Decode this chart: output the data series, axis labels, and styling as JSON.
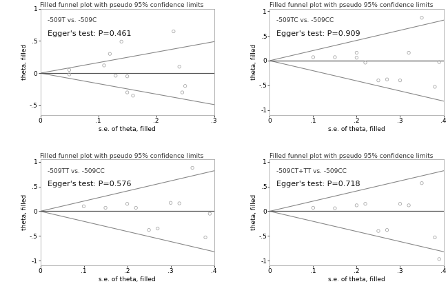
{
  "plots": [
    {
      "title": "Filled funnel plot with pseudo 95% confidence limits",
      "label": "-509T vs. -509C",
      "egger": "Egger's test: P=0.461",
      "xlabel": "s.e. of theta, filled",
      "ylabel": "theta, filled",
      "xlim": [
        0,
        3.0
      ],
      "ylim": [
        -0.65,
        1.0
      ],
      "xticks": [
        0,
        1.0,
        2.0,
        3.0
      ],
      "yticks": [
        -0.5,
        0,
        0.5,
        1.0
      ],
      "ytick_labels": [
        "-.5",
        "0",
        ".5",
        "1"
      ],
      "xtick_labels": [
        "0",
        ".1",
        ".2",
        ".3"
      ],
      "points_x": [
        0.5,
        0.5,
        1.1,
        1.2,
        1.3,
        1.4,
        1.5,
        1.5,
        1.6,
        2.3,
        2.4,
        2.5,
        2.45
      ],
      "points_y": [
        0.05,
        -0.02,
        0.12,
        0.3,
        -0.04,
        0.49,
        -0.05,
        -0.3,
        -0.35,
        0.65,
        0.1,
        -0.2,
        -0.3
      ],
      "line1_x": [
        0,
        3.0
      ],
      "line1_y": [
        0,
        0.49
      ],
      "line2_x": [
        0,
        3.0
      ],
      "line2_y": [
        0,
        -0.49
      ],
      "hline": 0
    },
    {
      "title": "Filled funnel plot with pseudo 95% confidence limits",
      "label": "-509TC vs. -509CC",
      "egger": "Egger's test: P=0.909",
      "xlabel": "s.e. of theta, filled",
      "ylabel": "theta, filled",
      "xlim": [
        0,
        4.0
      ],
      "ylim": [
        -1.1,
        1.05
      ],
      "xticks": [
        0,
        1.0,
        2.0,
        3.0,
        4.0
      ],
      "yticks": [
        -1.0,
        -0.5,
        0,
        0.5,
        1.0
      ],
      "ytick_labels": [
        "-1",
        "-.5",
        "0",
        ".5",
        "1"
      ],
      "xtick_labels": [
        "0",
        ".1",
        ".2",
        ".3",
        ".4"
      ],
      "points_x": [
        1.0,
        1.5,
        2.0,
        2.0,
        2.2,
        2.5,
        2.7,
        3.0,
        3.2,
        3.5,
        3.8,
        3.9
      ],
      "points_y": [
        0.07,
        0.07,
        0.06,
        0.16,
        -0.04,
        -0.4,
        -0.38,
        -0.4,
        0.16,
        0.87,
        -0.53,
        -0.03
      ],
      "line1_x": [
        0,
        4.0
      ],
      "line1_y": [
        0,
        0.82
      ],
      "line2_x": [
        0,
        4.0
      ],
      "line2_y": [
        0,
        -0.82
      ],
      "hline": 0
    },
    {
      "title": "Filled funnel plot with pseudo 95% confidence limits",
      "label": "-509TT vs. -509CC",
      "egger": "Egger's test: P=0.576",
      "xlabel": "s.e. of theta, filled",
      "ylabel": "theta, filled",
      "xlim": [
        0,
        4.0
      ],
      "ylim": [
        -1.1,
        1.05
      ],
      "xticks": [
        0,
        1.0,
        2.0,
        3.0,
        4.0
      ],
      "yticks": [
        -1.0,
        -0.5,
        0,
        0.5,
        1.0
      ],
      "ytick_labels": [
        "-1",
        "-.5",
        "0",
        ".5",
        "1"
      ],
      "xtick_labels": [
        "0",
        ".1",
        ".2",
        ".3",
        ".4"
      ],
      "points_x": [
        1.0,
        1.5,
        2.0,
        2.2,
        2.5,
        2.7,
        3.0,
        3.2,
        3.5,
        3.8,
        3.9
      ],
      "points_y": [
        0.1,
        0.07,
        0.15,
        0.07,
        -0.38,
        -0.35,
        0.17,
        0.16,
        0.88,
        -0.53,
        -0.05
      ],
      "line1_x": [
        0,
        4.0
      ],
      "line1_y": [
        0,
        0.82
      ],
      "line2_x": [
        0,
        4.0
      ],
      "line2_y": [
        0,
        -0.82
      ],
      "hline": 0
    },
    {
      "title": "Filled funnel plot with pseudo 95% confidence limits",
      "label": "-509CT+TT vs. -509CC",
      "egger": "Egger's test: P=0.718",
      "xlabel": "s.e. of theta, filled",
      "ylabel": "theta, filled",
      "xlim": [
        0,
        4.0
      ],
      "ylim": [
        -1.1,
        1.05
      ],
      "xticks": [
        0,
        1.0,
        2.0,
        3.0,
        4.0
      ],
      "yticks": [
        -1.0,
        -0.5,
        0,
        0.5,
        1.0
      ],
      "ytick_labels": [
        "-1",
        "-.5",
        "0",
        ".5",
        "1"
      ],
      "xtick_labels": [
        "0",
        ".1",
        ".2",
        ".3",
        ".4"
      ],
      "points_x": [
        1.0,
        1.5,
        2.0,
        2.2,
        2.5,
        2.7,
        3.0,
        3.2,
        3.5,
        3.8,
        3.9
      ],
      "points_y": [
        0.07,
        0.06,
        0.12,
        0.15,
        -0.4,
        -0.38,
        0.15,
        0.12,
        0.57,
        -0.53,
        -0.97
      ],
      "line1_x": [
        0,
        4.0
      ],
      "line1_y": [
        0,
        0.82
      ],
      "line2_x": [
        0,
        4.0
      ],
      "line2_y": [
        0,
        -0.82
      ],
      "hline": 0
    }
  ],
  "bg_color": "#ffffff",
  "point_color": "#aaaaaa",
  "line_color": "#888888",
  "hline_color": "#555555",
  "title_fontsize": 6.5,
  "label_fontsize": 6.5,
  "egger_fontsize": 8,
  "axis_fontsize": 6.5,
  "tick_fontsize": 6.5
}
